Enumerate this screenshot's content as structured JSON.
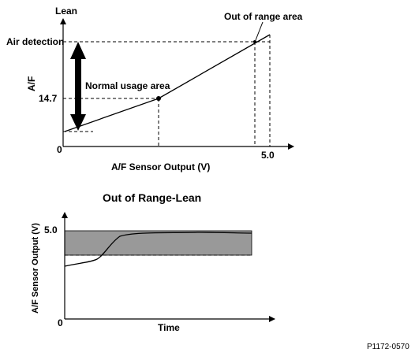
{
  "top_graph": {
    "y_axis_top_label": "Lean",
    "y_axis_label": "A/F",
    "x_axis_label": "A/F Sensor Output (V)",
    "origin_label": "0",
    "x_max_label": "5.0",
    "y_tick_high": "Air detection",
    "y_tick_mid": "14.7",
    "annotation_range": "Out of range area",
    "annotation_normal": "Normal usage area"
  },
  "bottom_graph": {
    "title": "Out of Range-Lean",
    "y_axis_label": "A/F Sensor Output (V)",
    "x_axis_label": "Time",
    "y_max_label": "5.0",
    "origin_label": "0",
    "band_color": "#999999"
  },
  "figure_ref": "P1172-0570"
}
